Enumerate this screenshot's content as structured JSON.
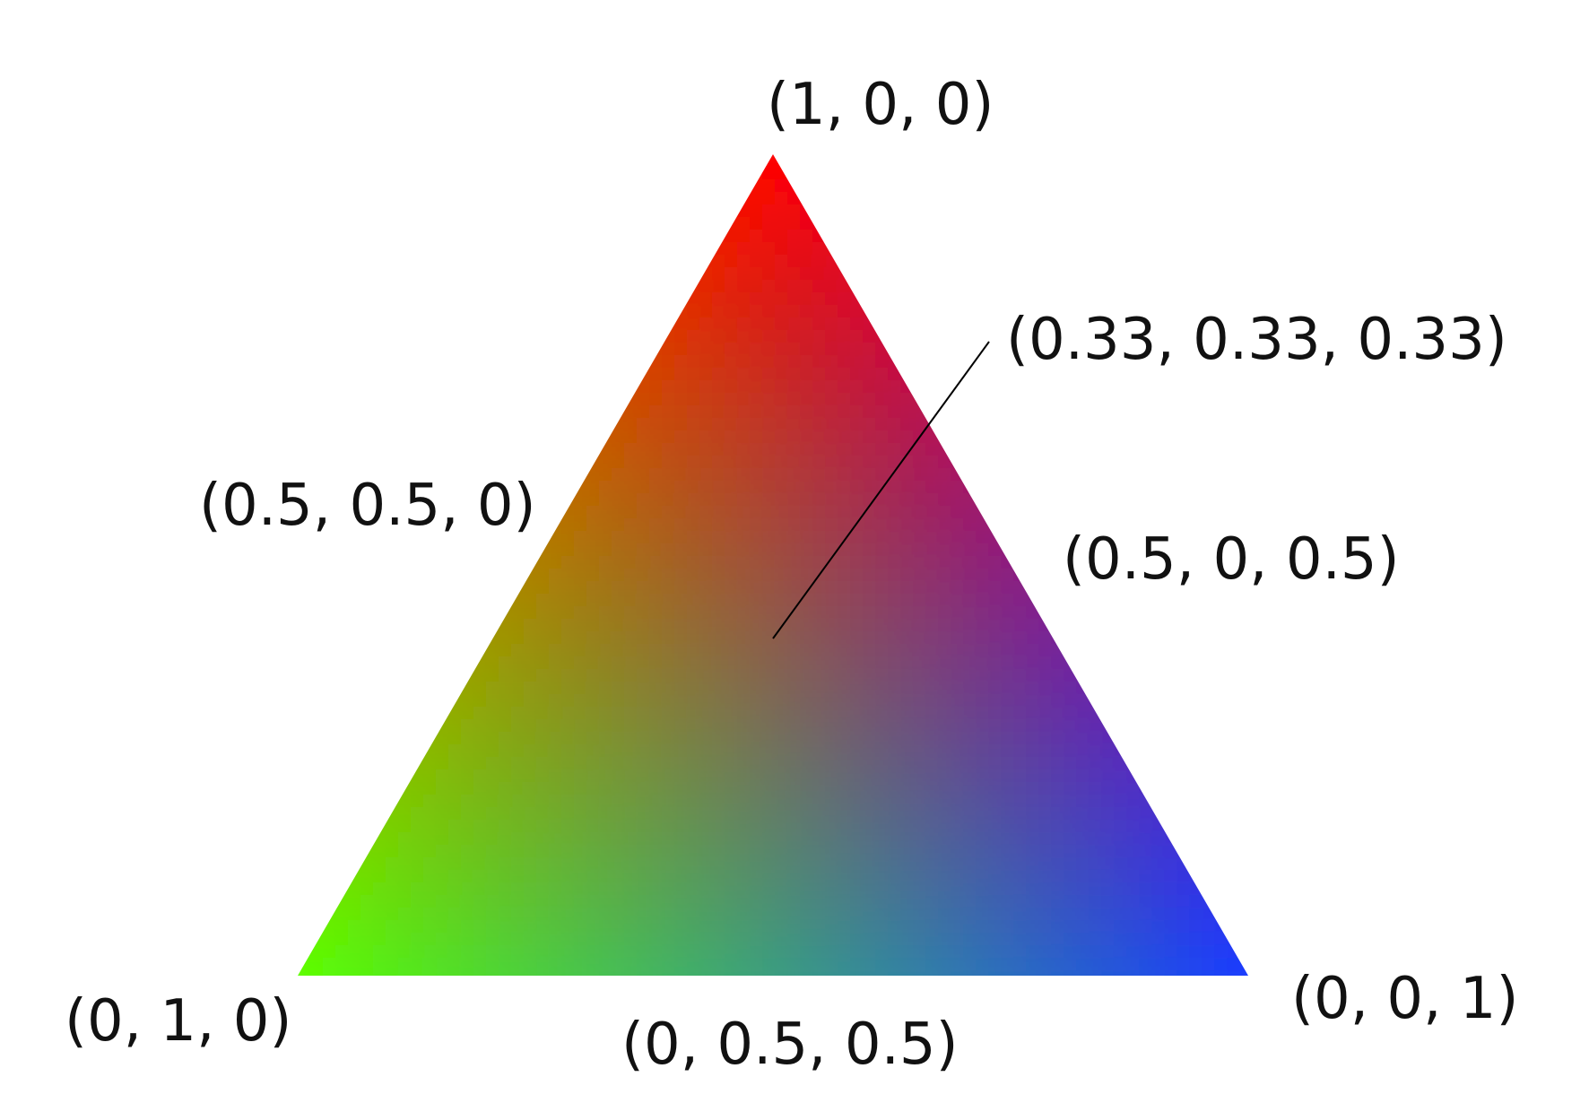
{
  "colors": {
    "vertex_top": "#ff0000",
    "vertex_left": "#5cff00",
    "vertex_right": "#1a3cff",
    "leader_line": "#000000",
    "text": "#111111",
    "background": "#ffffff"
  },
  "labels": {
    "top_vertex": "(1, 0, 0)",
    "left_vertex": "(0, 1, 0)",
    "right_vertex": "(0, 0, 1)",
    "left_edge_mid": "(0.5, 0.5, 0)",
    "right_edge_mid": "(0.5, 0, 0.5)",
    "bottom_edge_mid": "(0, 0.5, 0.5)",
    "centroid": "(0.33, 0.33, 0.33)"
  }
}
